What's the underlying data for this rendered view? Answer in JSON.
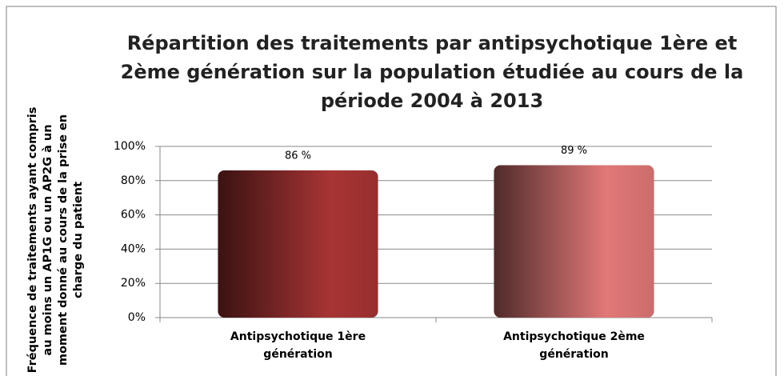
{
  "chart_data": {
    "type": "bar",
    "title": "Répartition des traitements par antipsychotique 1ère et 2ème génération sur la population étudiée au cours de la période 2004 à 2013",
    "y_label": "Fréquence de traitements ayant compris au moins un AP1G ou un AP2G à un moment donné au cours de la prise en charge du patient",
    "categories": [
      "Antipsychotique 1ère génération",
      "Antipsychotique 2ème génération"
    ],
    "values": [
      86,
      89
    ],
    "value_labels": [
      "86 %",
      "89 %"
    ],
    "colors": [
      "#a83434",
      "#e27878"
    ],
    "ylim": [
      0,
      100
    ],
    "yticks": [
      {
        "value": 0,
        "label": "0%"
      },
      {
        "value": 20,
        "label": "20%"
      },
      {
        "value": 40,
        "label": "40%"
      },
      {
        "value": 60,
        "label": "60%"
      },
      {
        "value": 80,
        "label": "80%"
      },
      {
        "value": 100,
        "label": "100%"
      }
    ],
    "grid": true
  }
}
